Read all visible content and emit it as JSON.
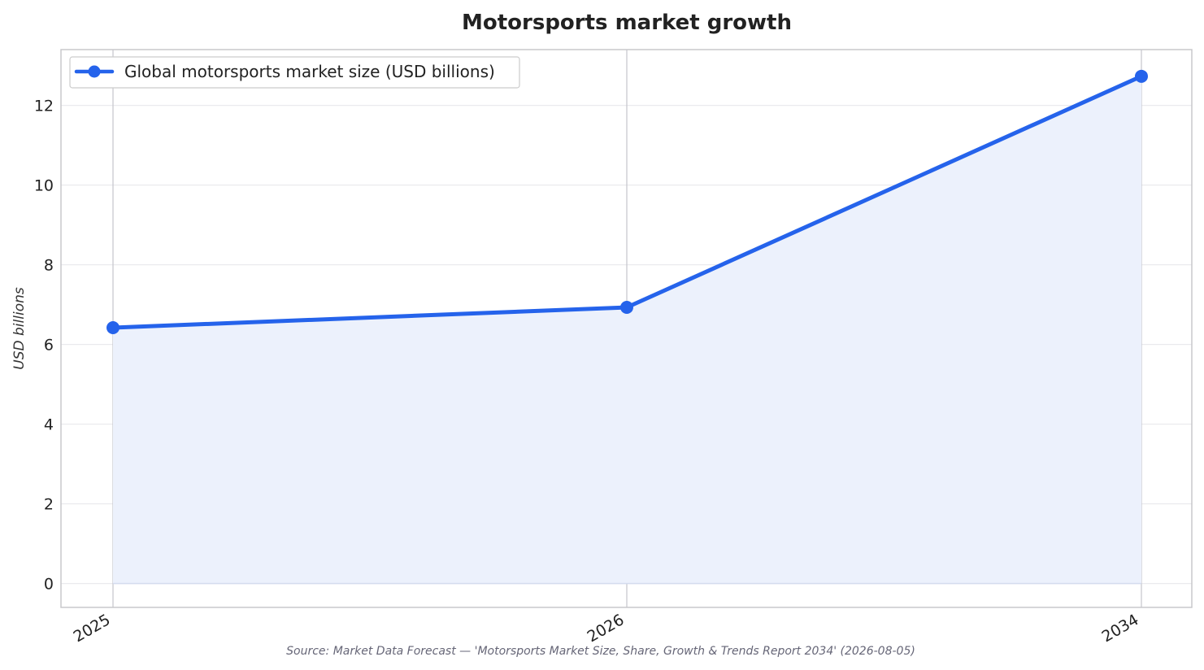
{
  "chart_data": {
    "type": "area",
    "title": "Motorsports market growth",
    "xlabel": "",
    "ylabel": "USD billions",
    "categories": [
      "2025",
      "2026",
      "2034"
    ],
    "series": [
      {
        "name": "Global motorsports market size (USD billions)",
        "values": [
          6.42,
          6.93,
          12.73
        ],
        "color": "#2563eb",
        "fill_color": "#ecf1fc"
      }
    ],
    "ylim": [
      -0.6,
      13.4
    ],
    "yticks": [
      "0",
      "2",
      "4",
      "6",
      "8",
      "10",
      "12"
    ],
    "grid": true,
    "legend_position": "top-left",
    "source": "Source: Market Data Forecast — 'Motorsports Market Size, Share, Growth & Trends Report 2034' (2026-08-05)"
  }
}
